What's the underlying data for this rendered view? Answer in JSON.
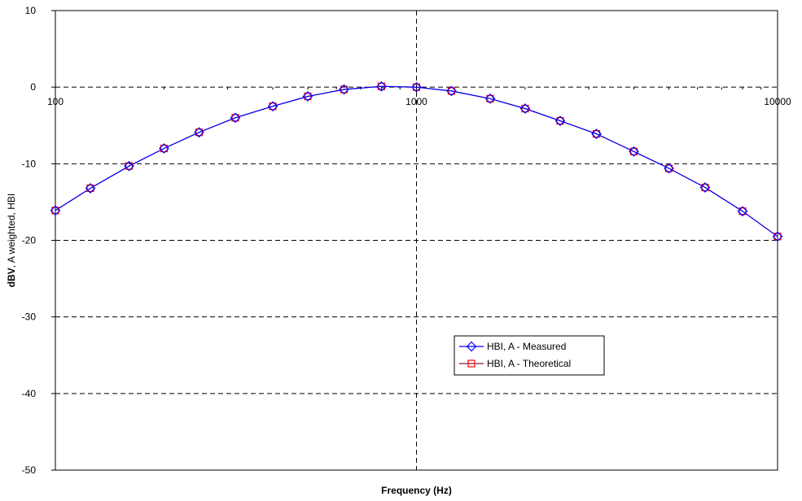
{
  "chart_data": {
    "type": "line",
    "title": "",
    "xlabel": "Frequency (Hz)",
    "ylabel_bold": "dBV",
    "ylabel_rest": ", A weighted, HBI",
    "xscale": "log",
    "xlim": [
      100,
      10000
    ],
    "ylim": [
      -50,
      10
    ],
    "y_ticks": [
      "10",
      "0",
      "-10",
      "-20",
      "-30",
      "-40",
      "-50"
    ],
    "y_tick_values": [
      10,
      0,
      -10,
      -20,
      -30,
      -40,
      -50
    ],
    "x_ticks": [
      "100",
      "1000",
      "10000"
    ],
    "x_tick_values": [
      100,
      1000,
      10000
    ],
    "grid": true,
    "legend_position": "lower-right",
    "x": [
      100,
      125,
      160,
      200,
      250,
      315,
      400,
      500,
      630,
      800,
      1000,
      1250,
      1600,
      2000,
      2500,
      3150,
      4000,
      5000,
      6300,
      8000,
      10000
    ],
    "series": [
      {
        "name": "HBI, A - Measured",
        "color": "#0000ff",
        "marker": "diamond",
        "values": [
          -16.1,
          -13.2,
          -10.3,
          -8.0,
          -5.9,
          -4.0,
          -2.5,
          -1.2,
          -0.3,
          0.1,
          0.0,
          -0.5,
          -1.5,
          -2.8,
          -4.4,
          -6.1,
          -8.4,
          -10.6,
          -13.1,
          -16.2,
          -19.5
        ]
      },
      {
        "name": "HBI, A - Theoretical",
        "color": "#ff0000",
        "line_color": "#7f1f3f",
        "marker": "square",
        "values": [
          -16.1,
          -13.2,
          -10.3,
          -8.0,
          -5.9,
          -4.0,
          -2.5,
          -1.2,
          -0.3,
          0.1,
          0.0,
          -0.5,
          -1.5,
          -2.8,
          -4.4,
          -6.1,
          -8.4,
          -10.6,
          -13.1,
          -16.2,
          -19.5
        ]
      }
    ]
  }
}
